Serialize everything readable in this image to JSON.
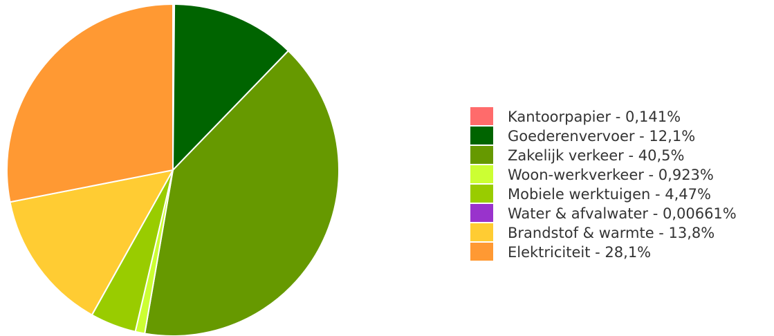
{
  "chart_data": {
    "type": "pie",
    "title": "",
    "legend_position": "right",
    "slices": [
      {
        "label": "Kantoorpapier - 0,141%",
        "name": "Kantoorpapier",
        "value": 0.141,
        "color": "#ff6b6b"
      },
      {
        "label": "Goederenvervoer - 12,1%",
        "name": "Goederenvervoer",
        "value": 12.1,
        "color": "#006400"
      },
      {
        "label": "Zakelijk verkeer - 40,5%",
        "name": "Zakelijk verkeer",
        "value": 40.5,
        "color": "#669900"
      },
      {
        "label": "Woon-werkverkeer - 0,923%",
        "name": "Woon-werkverkeer",
        "value": 0.923,
        "color": "#ccff33"
      },
      {
        "label": "Mobiele werktuigen - 4,47%",
        "name": "Mobiele werktuigen",
        "value": 4.47,
        "color": "#99cc00"
      },
      {
        "label": "Water & afvalwater - 0,00661%",
        "name": "Water & afvalwater",
        "value": 0.00661,
        "color": "#9933cc"
      },
      {
        "label": "Brandstof & warmte - 13,8%",
        "name": "Brandstof & warmte",
        "value": 13.8,
        "color": "#ffcc33"
      },
      {
        "label": "Elektriciteit - 28,1%",
        "name": "Elektriciteit",
        "value": 28.1,
        "color": "#ff9933"
      }
    ]
  }
}
